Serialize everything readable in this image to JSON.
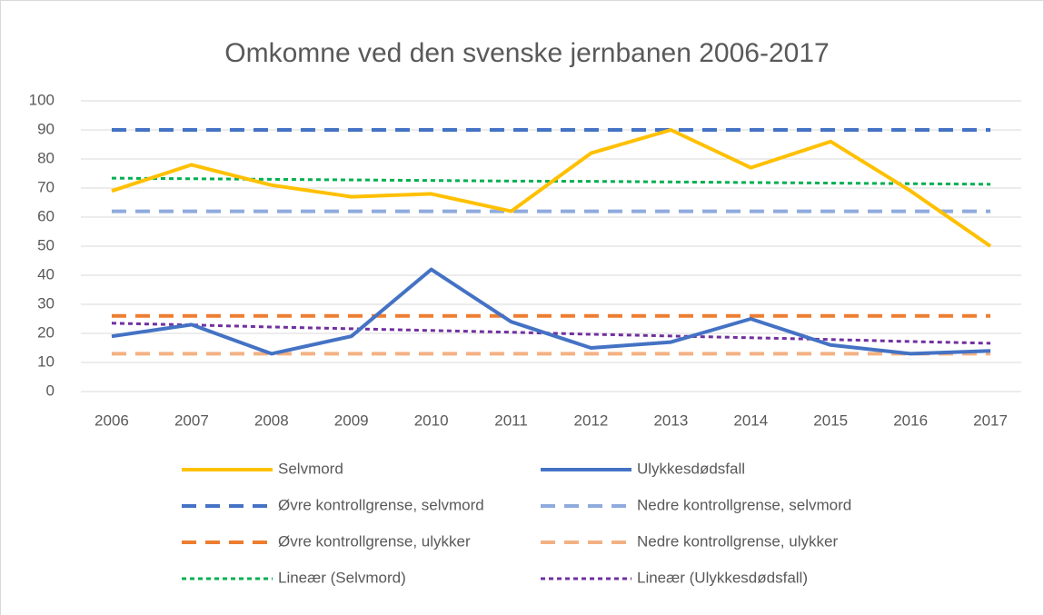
{
  "chart_data": {
    "type": "line",
    "title": "Omkomne ved den svenske jernbanen 2006-2017",
    "categories": [
      "2006",
      "2007",
      "2008",
      "2009",
      "2010",
      "2011",
      "2012",
      "2013",
      "2014",
      "2015",
      "2016",
      "2017"
    ],
    "ylim": [
      0,
      100
    ],
    "yticks": [
      0,
      10,
      20,
      30,
      40,
      50,
      60,
      70,
      80,
      90,
      100
    ],
    "grid": true,
    "legend": "bottom",
    "series": [
      {
        "name": "Selvmord",
        "color": "#FFC000",
        "style": "solid",
        "values": [
          69,
          78,
          71,
          67,
          68,
          62,
          82,
          90,
          77,
          86,
          69,
          50
        ]
      },
      {
        "name": "Ulykkesdødsfall",
        "color": "#4472C4",
        "style": "solid",
        "values": [
          19,
          23,
          13,
          19,
          42,
          24,
          15,
          17,
          25,
          16,
          13,
          14
        ]
      },
      {
        "name": "Øvre kontrollgrense, selvmord",
        "color": "#4472C4",
        "style": "dash",
        "values": [
          90,
          90,
          90,
          90,
          90,
          90,
          90,
          90,
          90,
          90,
          90,
          90
        ]
      },
      {
        "name": "Nedre kontrollgrense, selvmord",
        "color": "#8FAADC",
        "style": "dash",
        "values": [
          62,
          62,
          62,
          62,
          62,
          62,
          62,
          62,
          62,
          62,
          62,
          62
        ]
      },
      {
        "name": "Øvre kontrollgrense, ulykker",
        "color": "#ED7D31",
        "style": "dash",
        "values": [
          26,
          26,
          26,
          26,
          26,
          26,
          26,
          26,
          26,
          26,
          26,
          26
        ]
      },
      {
        "name": "Nedre kontrollgrense, ulykker",
        "color": "#F4B183",
        "style": "dash",
        "values": [
          13,
          13,
          13,
          13,
          13,
          13,
          13,
          13,
          13,
          13,
          13,
          13
        ]
      },
      {
        "name": "Lineær (Selvmord)",
        "color": "#00B050",
        "style": "dot",
        "values": [
          73.4,
          73.2,
          73.0,
          72.8,
          72.6,
          72.4,
          72.3,
          72.1,
          71.9,
          71.7,
          71.5,
          71.3
        ]
      },
      {
        "name": "Lineær (Ulykkesdødsfall)",
        "color": "#7030A0",
        "style": "dot",
        "values": [
          23.5,
          22.9,
          22.2,
          21.6,
          21.0,
          20.4,
          19.7,
          19.1,
          18.5,
          17.9,
          17.2,
          16.6
        ]
      }
    ]
  }
}
